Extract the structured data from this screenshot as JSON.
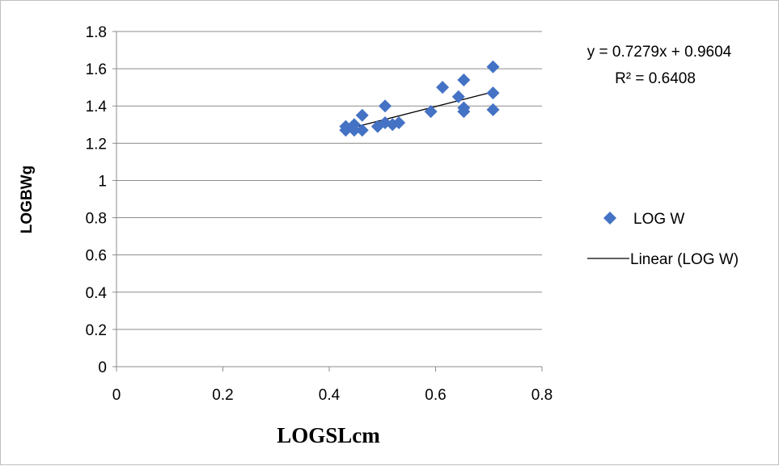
{
  "chart_data": {
    "type": "scatter",
    "xlabel": "LOGSLcm",
    "ylabel": "LOGBWg",
    "xlim": [
      0,
      0.8
    ],
    "ylim": [
      0,
      1.8
    ],
    "x_ticks": [
      0,
      0.2,
      0.4,
      0.6,
      0.8
    ],
    "y_ticks": [
      0,
      0.2,
      0.4,
      0.6,
      0.8,
      1,
      1.2,
      1.4,
      1.6,
      1.8
    ],
    "x_tick_labels": [
      "0",
      "0.2",
      "0.4",
      "0.6",
      "0.8"
    ],
    "y_tick_labels": [
      "0",
      "0.2",
      "0.4",
      "0.6",
      "0.8",
      "1",
      "1.2",
      "1.4",
      "1.6",
      "1.8"
    ],
    "grid": "horizontal",
    "legend_position": "right",
    "series": [
      {
        "name": "LOG W",
        "color": "#4472c4",
        "marker": "diamond",
        "points": [
          [
            0.431,
            1.29
          ],
          [
            0.431,
            1.27
          ],
          [
            0.447,
            1.3
          ],
          [
            0.447,
            1.27
          ],
          [
            0.462,
            1.35
          ],
          [
            0.462,
            1.27
          ],
          [
            0.491,
            1.29
          ],
          [
            0.505,
            1.4
          ],
          [
            0.505,
            1.31
          ],
          [
            0.519,
            1.3
          ],
          [
            0.531,
            1.31
          ],
          [
            0.591,
            1.37
          ],
          [
            0.613,
            1.5
          ],
          [
            0.643,
            1.45
          ],
          [
            0.653,
            1.54
          ],
          [
            0.653,
            1.39
          ],
          [
            0.653,
            1.37
          ],
          [
            0.708,
            1.61
          ],
          [
            0.708,
            1.47
          ],
          [
            0.708,
            1.38
          ]
        ]
      },
      {
        "name": "Linear (LOG W)",
        "color": "#000000",
        "type": "trendline",
        "slope": 0.7279,
        "intercept": 0.9604,
        "x_range": [
          0.431,
          0.708
        ]
      }
    ],
    "annotations": {
      "equation": "y = 0.7279x + 0.9604",
      "r_squared": "R² = 0.6408"
    }
  }
}
